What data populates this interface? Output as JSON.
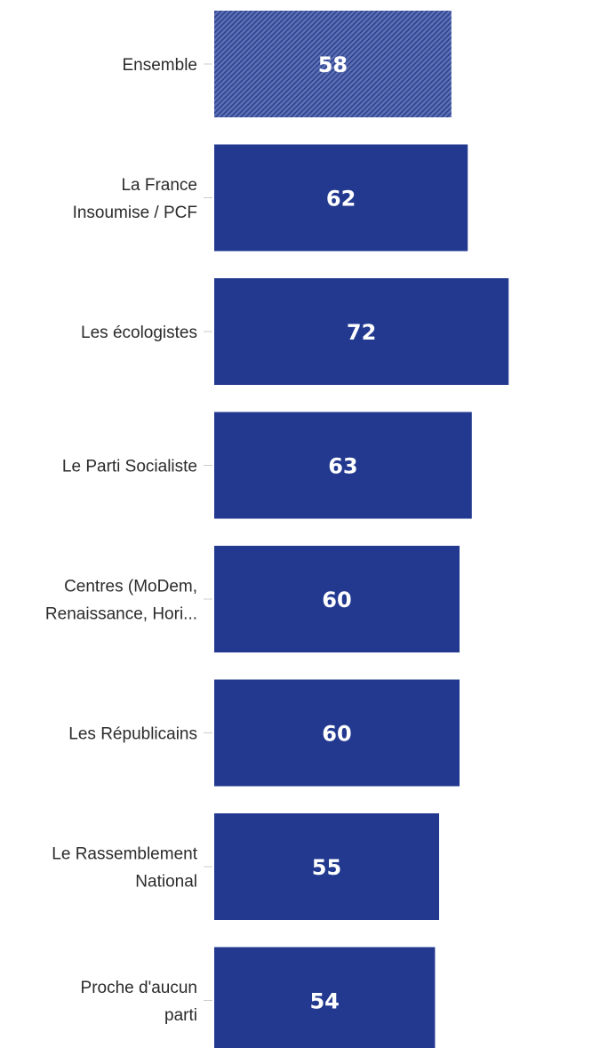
{
  "chart_data": {
    "type": "bar",
    "orientation": "horizontal",
    "categories": [
      [
        "Ensemble"
      ],
      [
        "La France",
        "Insoumise / PCF"
      ],
      [
        "Les écologistes"
      ],
      [
        "Le Parti Socialiste"
      ],
      [
        "Centres (MoDem,",
        "Renaissance, Hori..."
      ],
      [
        "Les Républicains"
      ],
      [
        "Le Rassemblement",
        "National"
      ],
      [
        "Proche d'aucun",
        "parti"
      ]
    ],
    "values": [
      58,
      62,
      72,
      63,
      60,
      60,
      55,
      54
    ],
    "xlim": [
      0,
      100
    ],
    "title": "",
    "xlabel": "",
    "ylabel": "",
    "grid": false,
    "legend": "none",
    "colors": {
      "bar": "#22398f",
      "highlight_bar_hatch": "#22398f",
      "highlight_bar_background": "#5d6fb0",
      "value_label": "#ffffff",
      "category_label": "#2b2b2b",
      "tick": "#cccccc"
    },
    "highlighted_category_index": 0
  }
}
